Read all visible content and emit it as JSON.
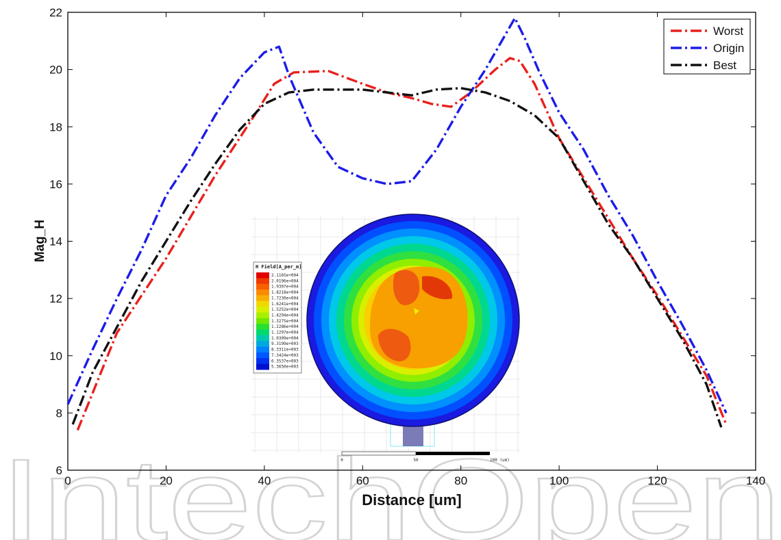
{
  "chart_data": {
    "type": "line",
    "xlabel": "Distance [um]",
    "ylabel": "Mag_H",
    "xlim": [
      0,
      140
    ],
    "ylim": [
      6,
      22
    ],
    "xticks": [
      0,
      20,
      40,
      60,
      80,
      100,
      120,
      140
    ],
    "yticks": [
      6,
      8,
      10,
      12,
      14,
      16,
      18,
      20,
      22
    ],
    "grid": false,
    "legend_position": "top-right",
    "series": [
      {
        "name": "Worst",
        "color": "#e8201c",
        "x": [
          2,
          10,
          20,
          30,
          38,
          42,
          46,
          53,
          60,
          65,
          70,
          74,
          78,
          82,
          87,
          90,
          92,
          95,
          100,
          105,
          110,
          115,
          120,
          125,
          130,
          134
        ],
        "y": [
          7.4,
          10.8,
          13.4,
          16.3,
          18.4,
          19.5,
          19.9,
          19.95,
          19.5,
          19.2,
          19.0,
          18.8,
          18.7,
          19.2,
          20.0,
          20.4,
          20.3,
          19.5,
          17.6,
          16.2,
          14.8,
          13.4,
          12.1,
          10.7,
          9.3,
          7.6
        ]
      },
      {
        "name": "Origin",
        "color": "#1c1ce8",
        "x": [
          0,
          5,
          10,
          15,
          20,
          25,
          30,
          35,
          40,
          43,
          45,
          50,
          55,
          60,
          65,
          70,
          75,
          80,
          85,
          90,
          91,
          93,
          96,
          100,
          105,
          110,
          115,
          120,
          125,
          130,
          134
        ],
        "y": [
          8.3,
          10.2,
          12.0,
          13.7,
          15.6,
          16.9,
          18.4,
          19.7,
          20.6,
          20.8,
          19.8,
          17.8,
          16.6,
          16.2,
          16.0,
          16.1,
          17.2,
          18.7,
          20.0,
          21.5,
          21.8,
          21.1,
          19.9,
          18.5,
          17.2,
          15.6,
          14.2,
          12.6,
          11.1,
          9.5,
          8.0
        ]
      },
      {
        "name": "Best",
        "color": "#111111",
        "x": [
          1,
          5,
          10,
          15,
          20,
          25,
          30,
          35,
          40,
          45,
          50,
          55,
          60,
          65,
          70,
          75,
          80,
          85,
          90,
          95,
          100,
          105,
          110,
          115,
          120,
          125,
          130,
          133
        ],
        "y": [
          7.6,
          9.4,
          11.0,
          12.6,
          14.0,
          15.4,
          16.7,
          17.9,
          18.8,
          19.2,
          19.3,
          19.3,
          19.3,
          19.2,
          19.1,
          19.3,
          19.35,
          19.2,
          18.9,
          18.4,
          17.6,
          16.1,
          14.6,
          13.4,
          12.0,
          10.6,
          9.0,
          7.5
        ]
      }
    ]
  },
  "inset": {
    "colorbar_title": "H Field[A_per_m]",
    "colorbar_labels": [
      "2.1165e+004",
      "2.0196e+004",
      "1.9307e+004",
      "1.8218e+004",
      "1.7230e+004",
      "1.6241e+004",
      "1.5252e+004",
      "1.4294e+004",
      "1.3275e+004",
      "1.2286e+004",
      "1.1297e+004",
      "1.0309e+004",
      "9.3199e+003",
      "8.3311e+003",
      "7.3424e+003",
      "6.3537e+003",
      "5.3650e+003"
    ],
    "colorbar_colors": [
      "#e00000",
      "#f03a00",
      "#f86000",
      "#fa8a00",
      "#f8b000",
      "#f0d800",
      "#d8f000",
      "#a8f000",
      "#70e800",
      "#28e030",
      "#00d870",
      "#00c8b0",
      "#00a8e0",
      "#0080ff",
      "#0058ff",
      "#0030f0",
      "#0010d0"
    ],
    "scale_labels": [
      "0",
      "50",
      "100 (um)"
    ]
  },
  "watermark": "IntechOpen"
}
